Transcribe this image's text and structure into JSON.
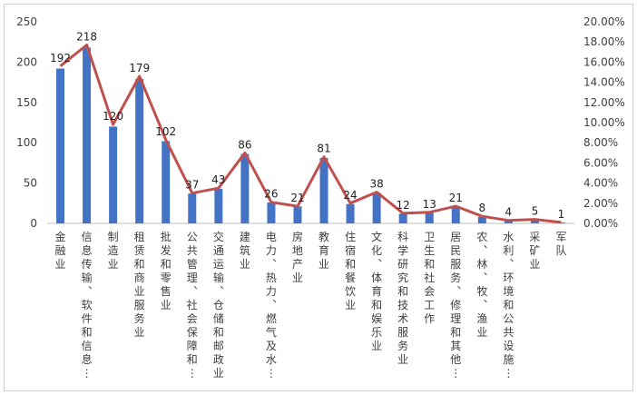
{
  "chart_data": {
    "type": "bar",
    "categories": [
      "金融业",
      "信息传输、软件和信息技…",
      "制造业",
      "租赁和商业服务业",
      "批发和零售业",
      "公共管理、社会保障和社…",
      "交通运输、仓储和邮政业",
      "建筑业",
      "电力、热力、燃气及水生…",
      "房地产业",
      "教育业",
      "住宿和餐饮业",
      "文化、体育和娱乐业",
      "科学研究和技术服务业",
      "卫生和社会工作",
      "居民服务、修理和其他服…",
      "农、林、牧、渔业",
      "水利、环境和公共设施管…",
      "采矿业",
      "军队"
    ],
    "series": [
      {
        "type": "bar",
        "axis": "left",
        "values": [
          192,
          218,
          120,
          179,
          102,
          37,
          43,
          86,
          26,
          21,
          81,
          24,
          38,
          12,
          13,
          21,
          8,
          4,
          5,
          1
        ]
      },
      {
        "type": "line",
        "axis": "right",
        "values": [
          15.6,
          17.7,
          9.8,
          14.6,
          8.3,
          3.0,
          3.5,
          7.0,
          2.1,
          1.7,
          6.6,
          2.0,
          3.1,
          1.0,
          1.1,
          1.7,
          0.7,
          0.3,
          0.4,
          0.1
        ]
      }
    ],
    "data_labels": [
      "192",
      "218",
      "120",
      "179",
      "102",
      "37",
      "43",
      "86",
      "26",
      "21",
      "81",
      "24",
      "38",
      "12",
      "13",
      "21",
      "8",
      "4",
      "5",
      "1"
    ],
    "left_axis": {
      "ylim": [
        0,
        250
      ],
      "ticks": [
        "0",
        "50",
        "100",
        "150",
        "200",
        "250"
      ]
    },
    "right_axis": {
      "ylim": [
        0,
        20
      ],
      "ticks": [
        "0.00%",
        "2.00%",
        "4.00%",
        "6.00%",
        "8.00%",
        "10.00%",
        "12.00%",
        "14.00%",
        "16.00%",
        "18.00%",
        "20.00%"
      ]
    },
    "title": "",
    "xlabel": "",
    "ylabel": "",
    "grid": false,
    "legend": "none",
    "colors": {
      "bar": "#4472c4",
      "line": "#c0504d",
      "axis": "#bfbfbf",
      "text": "#404040"
    }
  }
}
